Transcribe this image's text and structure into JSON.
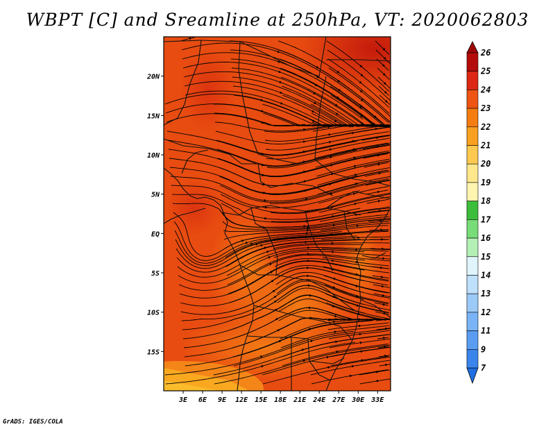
{
  "title": "WBPT [C] and Sreamline at 250hPa, VT: 2020062803",
  "footer": "GrADS: IGES/COLA",
  "map": {
    "lon_range": [
      0,
      35
    ],
    "lat_range": [
      -20,
      25
    ],
    "lon_ticks": [
      "3E",
      "6E",
      "9E",
      "12E",
      "15E",
      "18E",
      "21E",
      "24E",
      "27E",
      "30E",
      "33E"
    ],
    "lon_tick_values": [
      3,
      6,
      9,
      12,
      15,
      18,
      21,
      24,
      27,
      30,
      33
    ],
    "lat_ticks": [
      "20N",
      "15N",
      "10N",
      "5N",
      "EQ",
      "5S",
      "10S",
      "15S"
    ],
    "lat_tick_values": [
      20,
      15,
      10,
      5,
      0,
      -5,
      -10,
      -15
    ],
    "field": "WBPT",
    "field_unit": "C",
    "level": "250hPa",
    "background_color": "#e84c10"
  },
  "colorbar": {
    "levels": [
      "7",
      "9",
      "11",
      "12",
      "13",
      "14",
      "15",
      "16",
      "17",
      "18",
      "19",
      "20",
      "21",
      "22",
      "23",
      "24",
      "25",
      "26"
    ],
    "colors": [
      "#1e6ee0",
      "#3a84ec",
      "#5a9cf2",
      "#7ab4f6",
      "#9ccaf8",
      "#bee0fa",
      "#e0f4fc",
      "#b4f0b4",
      "#78dc78",
      "#3cbe3c",
      "#fff4b0",
      "#ffe88c",
      "#fcc850",
      "#faa020",
      "#f47c10",
      "#ee5414",
      "#dc2814",
      "#b40c0a"
    ],
    "upper_arrow_color": "#a00808",
    "lower_arrow_color": "#1e6ee0"
  }
}
